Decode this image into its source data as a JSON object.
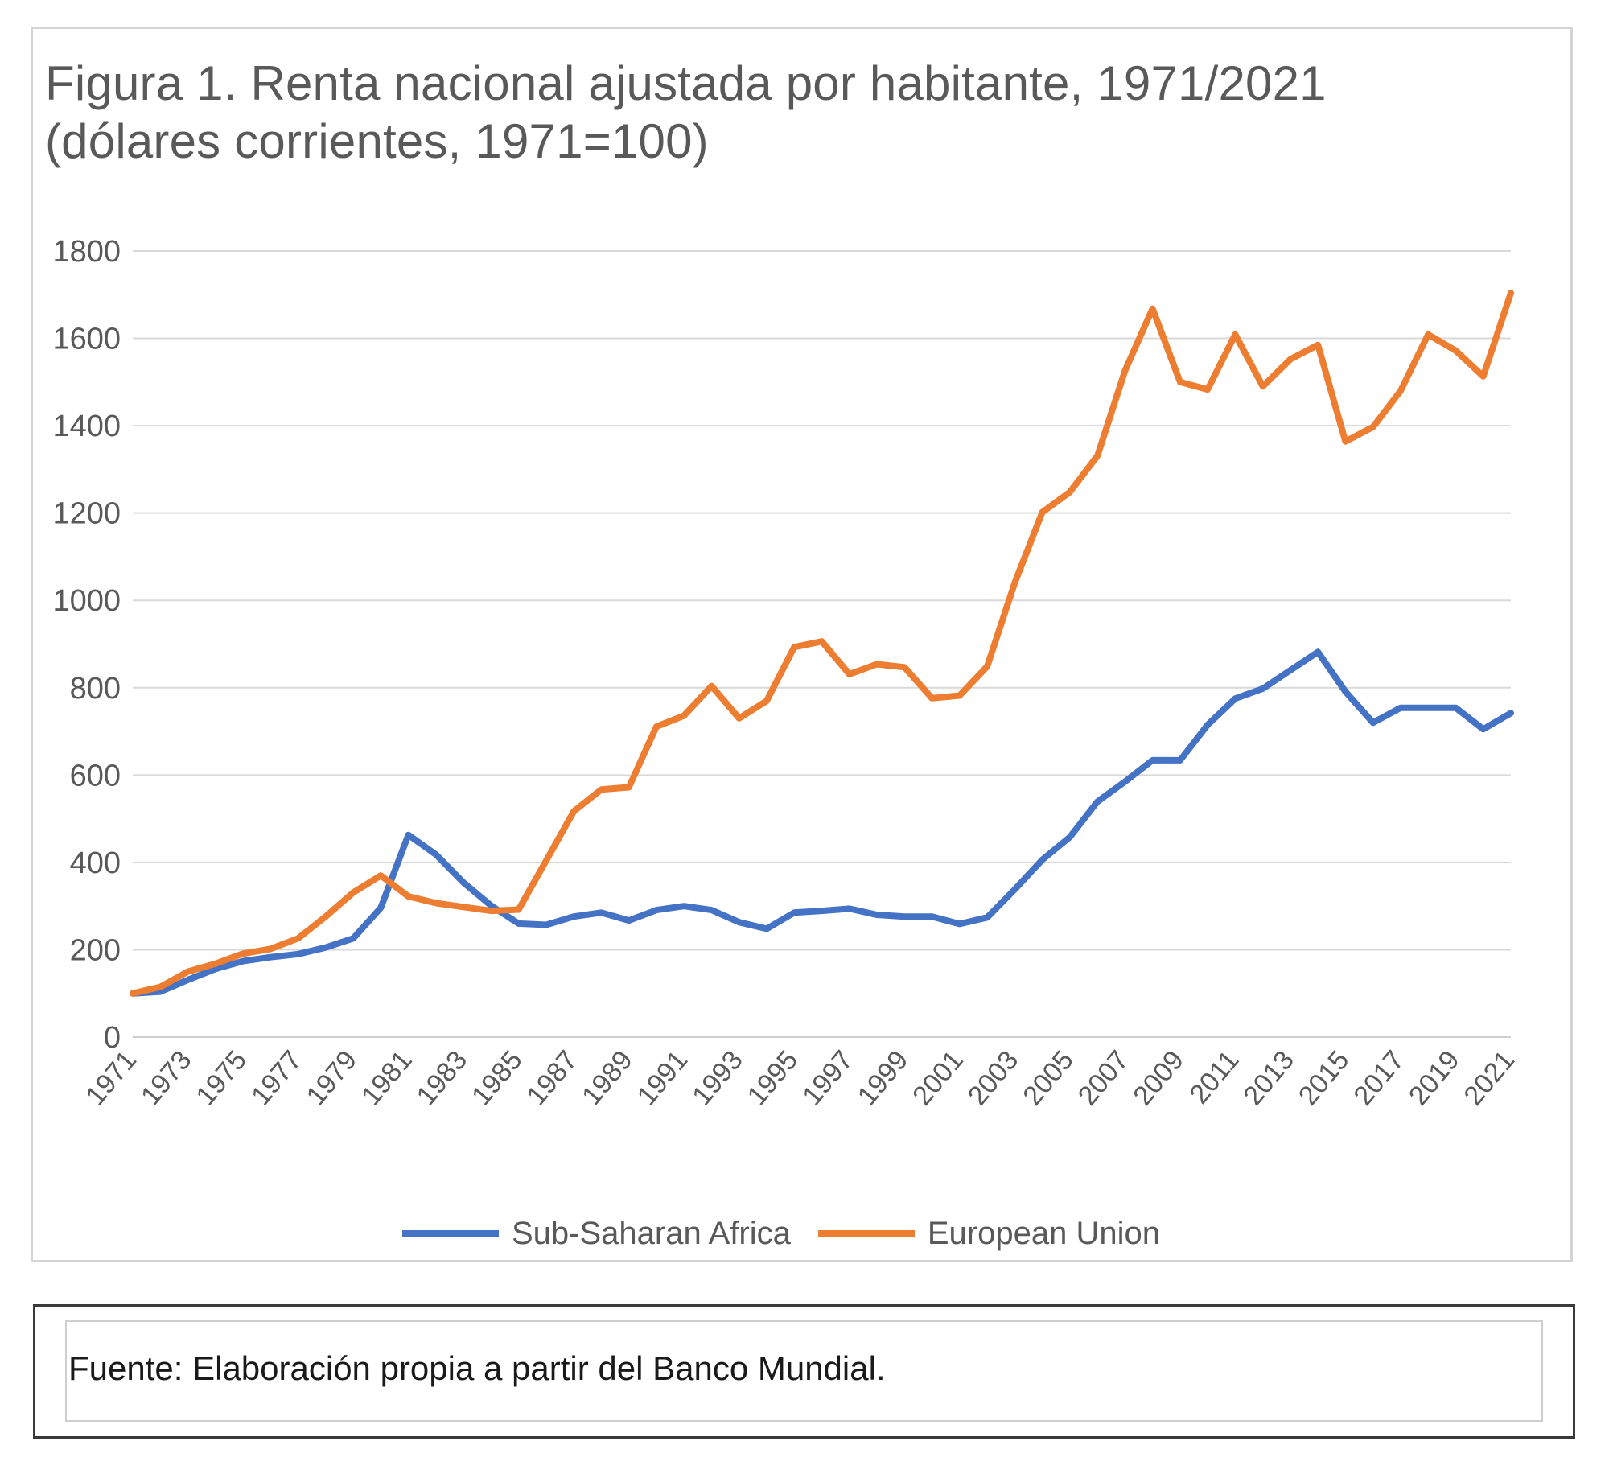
{
  "chart_data": {
    "type": "line",
    "title": "Figura 1. Renta nacional ajustada por habitante, 1971/2021 (dólares corrientes, 1971=100)",
    "title_lines": [
      "Figura 1. Renta nacional ajustada por habitante, 1971/2021",
      "(dólares corrientes, 1971=100)"
    ],
    "xlabel": "",
    "ylabel": "",
    "ylim": [
      0,
      1800
    ],
    "yticks": [
      0,
      200,
      400,
      600,
      800,
      1000,
      1200,
      1400,
      1600,
      1800
    ],
    "x": [
      1971,
      1972,
      1973,
      1974,
      1975,
      1976,
      1977,
      1978,
      1979,
      1980,
      1981,
      1982,
      1983,
      1984,
      1985,
      1986,
      1987,
      1988,
      1989,
      1990,
      1991,
      1992,
      1993,
      1994,
      1995,
      1996,
      1997,
      1998,
      1999,
      2000,
      2001,
      2002,
      2003,
      2004,
      2005,
      2006,
      2007,
      2008,
      2009,
      2010,
      2011,
      2012,
      2013,
      2014,
      2015,
      2016,
      2017,
      2018,
      2019,
      2020,
      2021
    ],
    "xtick_labels": [
      "1971",
      "1973",
      "1975",
      "1977",
      "1979",
      "1981",
      "1983",
      "1985",
      "1987",
      "1989",
      "1991",
      "1993",
      "1995",
      "1997",
      "1999",
      "2001",
      "2003",
      "2005",
      "2007",
      "2009",
      "2011",
      "2013",
      "2015",
      "2017",
      "2019",
      "2021"
    ],
    "grid": true,
    "legend_position": "bottom",
    "series": [
      {
        "name": "Sub-Saharan Africa",
        "color": "#4472C4",
        "values": [
          100,
          104,
          131,
          156,
          174,
          183,
          190,
          205,
          226,
          296,
          463,
          418,
          354,
          301,
          260,
          257,
          276,
          285,
          267,
          291,
          300,
          291,
          263,
          248,
          285,
          289,
          294,
          280,
          276,
          276,
          259,
          274,
          338,
          406,
          458,
          539,
          585,
          634,
          634,
          715,
          775,
          798,
          840,
          882,
          791,
          720,
          754,
          754,
          754,
          705,
          742
        ]
      },
      {
        "name": "European Union",
        "color": "#ED7D31",
        "values": [
          100,
          115,
          150,
          168,
          191,
          202,
          226,
          276,
          331,
          370,
          322,
          307,
          298,
          289,
          292,
          404,
          517,
          567,
          572,
          711,
          736,
          804,
          730,
          770,
          893,
          906,
          831,
          854,
          847,
          776,
          782,
          849,
          1040,
          1202,
          1248,
          1331,
          1526,
          1668,
          1500,
          1483,
          1609,
          1490,
          1552,
          1585,
          1364,
          1397,
          1480,
          1609,
          1572,
          1513,
          1704
        ]
      }
    ]
  },
  "legend": {
    "items": [
      {
        "label": "Sub-Saharan Africa",
        "color": "#4472C4"
      },
      {
        "label": "European Union",
        "color": "#ED7D31"
      }
    ]
  },
  "footer": {
    "source_text": "Fuente: Elaboración propia a partir del Banco Mundial."
  }
}
